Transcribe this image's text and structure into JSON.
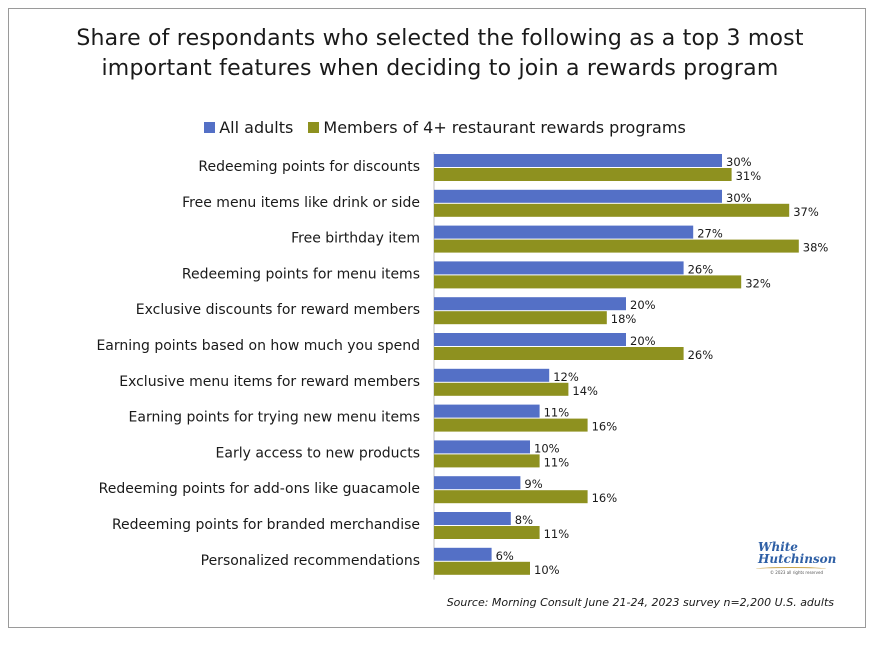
{
  "title_line1": "Share of respondants who selected the following as a top 3 most",
  "title_line2": "important features when deciding to join a rewards program",
  "source": "Source: Morning Consult June 21-24, 2023 survey n=2,200 U.S. adults",
  "logo": {
    "line1": "White",
    "line2": "Hutchinson",
    "tagline": "© 2023 all rights reserved"
  },
  "colors": {
    "all_adults": "#5470c6",
    "members": "#8e911f"
  },
  "chart_data": {
    "type": "bar",
    "orientation": "horizontal",
    "title": "Share of respondants who selected the following as a top 3 most important features when deciding to join a rewards program",
    "categories": [
      "Redeeming points for discounts",
      "Free menu items like drink or side",
      "Free birthday item",
      "Redeeming points for menu items",
      "Exclusive discounts for reward members",
      "Earning points based on how much you spend",
      "Exclusive menu items for reward members",
      "Earning points for trying new menu items",
      "Early access to new products",
      "Redeeming points for add-ons like guacamole",
      "Redeeming points for branded merchandise",
      "Personalized recommendations"
    ],
    "series": [
      {
        "name": "All adults",
        "values": [
          30,
          30,
          27,
          26,
          20,
          20,
          12,
          11,
          10,
          9,
          8,
          6
        ]
      },
      {
        "name": "Members of 4+ restaurant rewards programs",
        "values": [
          31,
          37,
          38,
          32,
          18,
          26,
          14,
          16,
          11,
          16,
          11,
          10
        ]
      }
    ],
    "value_suffix": "%",
    "xlim": [
      0,
      40
    ],
    "grid": false,
    "legend": "top"
  }
}
